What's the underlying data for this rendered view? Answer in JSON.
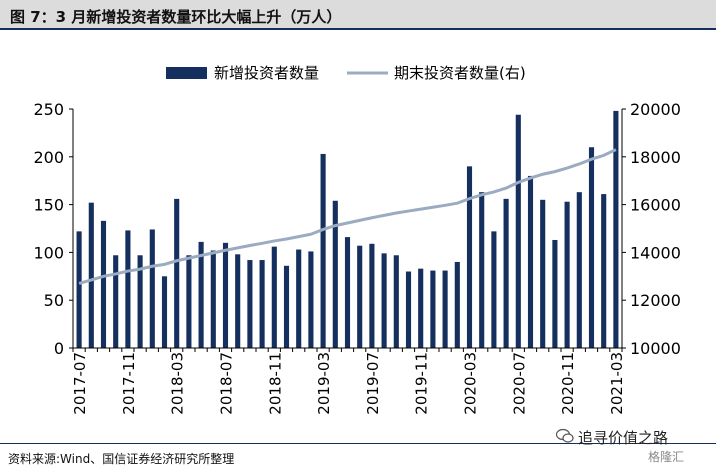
{
  "figure_title": "图 7：3 月新增投资者数量环比大幅上升（万人）",
  "source": "资料来源:Wind、国信证券经济研究所整理",
  "watermark": {
    "main": "追寻价值之路",
    "sub": "格隆汇"
  },
  "colors": {
    "bar": "#15305e",
    "line": "#9aabc2",
    "axis": "#000000"
  },
  "chart_data": {
    "type": "bar",
    "legend": [
      {
        "name": "新增投资者数量",
        "kind": "bar"
      },
      {
        "name": "期末投资者数量(右)",
        "kind": "line"
      }
    ],
    "legend_position": "top-center",
    "grid": false,
    "y_left": {
      "range": [
        0,
        250
      ],
      "ticks": [
        "0",
        "50",
        "100",
        "150",
        "200",
        "250"
      ]
    },
    "y_right": {
      "range": [
        10000,
        20000
      ],
      "ticks": [
        "10000",
        "12000",
        "14000",
        "16000",
        "18000",
        "20000"
      ]
    },
    "x_tick_labels": [
      {
        "index": 0,
        "label": "2017-07"
      },
      {
        "index": 4,
        "label": "2017-11"
      },
      {
        "index": 8,
        "label": "2018-03"
      },
      {
        "index": 12,
        "label": "2018-07"
      },
      {
        "index": 16,
        "label": "2018-11"
      },
      {
        "index": 20,
        "label": "2019-03"
      },
      {
        "index": 24,
        "label": "2019-07"
      },
      {
        "index": 28,
        "label": "2019-11"
      },
      {
        "index": 32,
        "label": "2020-03"
      },
      {
        "index": 36,
        "label": "2020-07"
      },
      {
        "index": 40,
        "label": "2020-11"
      },
      {
        "index": 44,
        "label": "2021-03"
      }
    ],
    "categories": [
      "2017-07",
      "2017-08",
      "2017-09",
      "2017-10",
      "2017-11",
      "2017-12",
      "2018-01",
      "2018-02",
      "2018-03",
      "2018-04",
      "2018-05",
      "2018-06",
      "2018-07",
      "2018-08",
      "2018-09",
      "2018-10",
      "2018-11",
      "2018-12",
      "2019-01",
      "2019-02",
      "2019-03",
      "2019-04",
      "2019-05",
      "2019-06",
      "2019-07",
      "2019-08",
      "2019-09",
      "2019-10",
      "2019-11",
      "2019-12",
      "2020-01",
      "2020-02",
      "2020-03",
      "2020-04",
      "2020-05",
      "2020-06",
      "2020-07",
      "2020-08",
      "2020-09",
      "2020-10",
      "2020-11",
      "2020-12",
      "2021-01",
      "2021-02",
      "2021-03"
    ],
    "series": [
      {
        "name": "新增投资者数量",
        "axis": "left",
        "values": [
          122,
          152,
          133,
          97,
          123,
          97,
          124,
          75,
          156,
          97,
          111,
          102,
          110,
          98,
          92,
          92,
          106,
          86,
          103,
          101,
          203,
          154,
          116,
          107,
          109,
          99,
          97,
          80,
          83,
          81,
          81,
          90,
          190,
          163,
          122,
          156,
          244,
          180,
          155,
          113,
          153,
          163,
          210,
          161,
          248
        ]
      },
      {
        "name": "期末投资者数量(右)",
        "axis": "right",
        "values": [
          12700,
          12850,
          13000,
          13100,
          13220,
          13300,
          13420,
          13500,
          13650,
          13760,
          13870,
          13980,
          14090,
          14190,
          14290,
          14380,
          14480,
          14560,
          14660,
          14760,
          14960,
          15120,
          15230,
          15340,
          15450,
          15550,
          15650,
          15730,
          15810,
          15890,
          15970,
          16060,
          16250,
          16410,
          16530,
          16690,
          16930,
          17110,
          17270,
          17380,
          17530,
          17700,
          17900,
          18060,
          18300
        ]
      }
    ]
  }
}
